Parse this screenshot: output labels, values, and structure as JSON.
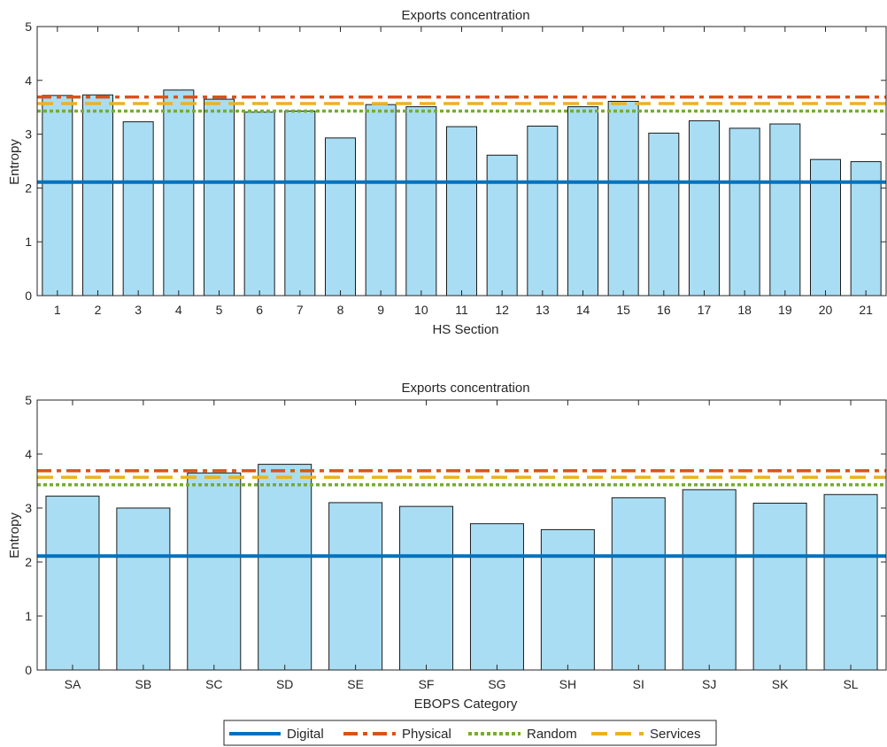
{
  "chart_data": [
    {
      "type": "bar",
      "title": "Exports concentration",
      "xlabel": "HS Section",
      "ylabel": "Entropy",
      "ylim": [
        0,
        5
      ],
      "yticks": [
        0,
        1,
        2,
        3,
        4,
        5
      ],
      "categories": [
        "1",
        "2",
        "3",
        "4",
        "5",
        "6",
        "7",
        "8",
        "9",
        "10",
        "11",
        "12",
        "13",
        "14",
        "15",
        "16",
        "17",
        "18",
        "19",
        "20",
        "21"
      ],
      "values": [
        3.72,
        3.73,
        3.23,
        3.82,
        3.65,
        3.41,
        3.43,
        2.93,
        3.55,
        3.51,
        3.14,
        2.61,
        3.15,
        3.51,
        3.61,
        3.02,
        3.25,
        3.11,
        3.19,
        2.53,
        2.49
      ],
      "reference_lines": [
        {
          "name": "Digital",
          "value": 2.11
        },
        {
          "name": "Physical",
          "value": 3.69
        },
        {
          "name": "Random",
          "value": 3.43
        },
        {
          "name": "Services",
          "value": 3.57
        }
      ],
      "grid": false
    },
    {
      "type": "bar",
      "title": "Exports concentration",
      "xlabel": "EBOPS Category",
      "ylabel": "Entropy",
      "ylim": [
        0,
        5
      ],
      "yticks": [
        0,
        1,
        2,
        3,
        4,
        5
      ],
      "categories": [
        "SA",
        "SB",
        "SC",
        "SD",
        "SE",
        "SF",
        "SG",
        "SH",
        "SI",
        "SJ",
        "SK",
        "SL"
      ],
      "values": [
        3.22,
        3.0,
        3.65,
        3.81,
        3.1,
        3.03,
        2.71,
        2.6,
        3.19,
        3.34,
        3.09,
        3.25
      ],
      "reference_lines": [
        {
          "name": "Digital",
          "value": 2.11
        },
        {
          "name": "Physical",
          "value": 3.69
        },
        {
          "name": "Random",
          "value": 3.43
        },
        {
          "name": "Services",
          "value": 3.57
        }
      ],
      "grid": false
    }
  ],
  "legend": {
    "placement": "bottom-center",
    "items": [
      {
        "name": "Digital",
        "style": "solid",
        "color": "#0072BD"
      },
      {
        "name": "Physical",
        "style": "dash-dot",
        "color": "#D95319"
      },
      {
        "name": "Random",
        "style": "dotted",
        "color": "#77AC30"
      },
      {
        "name": "Services",
        "style": "dashed",
        "color": "#EDB120"
      }
    ]
  },
  "colors": {
    "bar_fill": "#A9DDF3",
    "bar_edge": "#1a1a1a",
    "axis": "#262626"
  }
}
